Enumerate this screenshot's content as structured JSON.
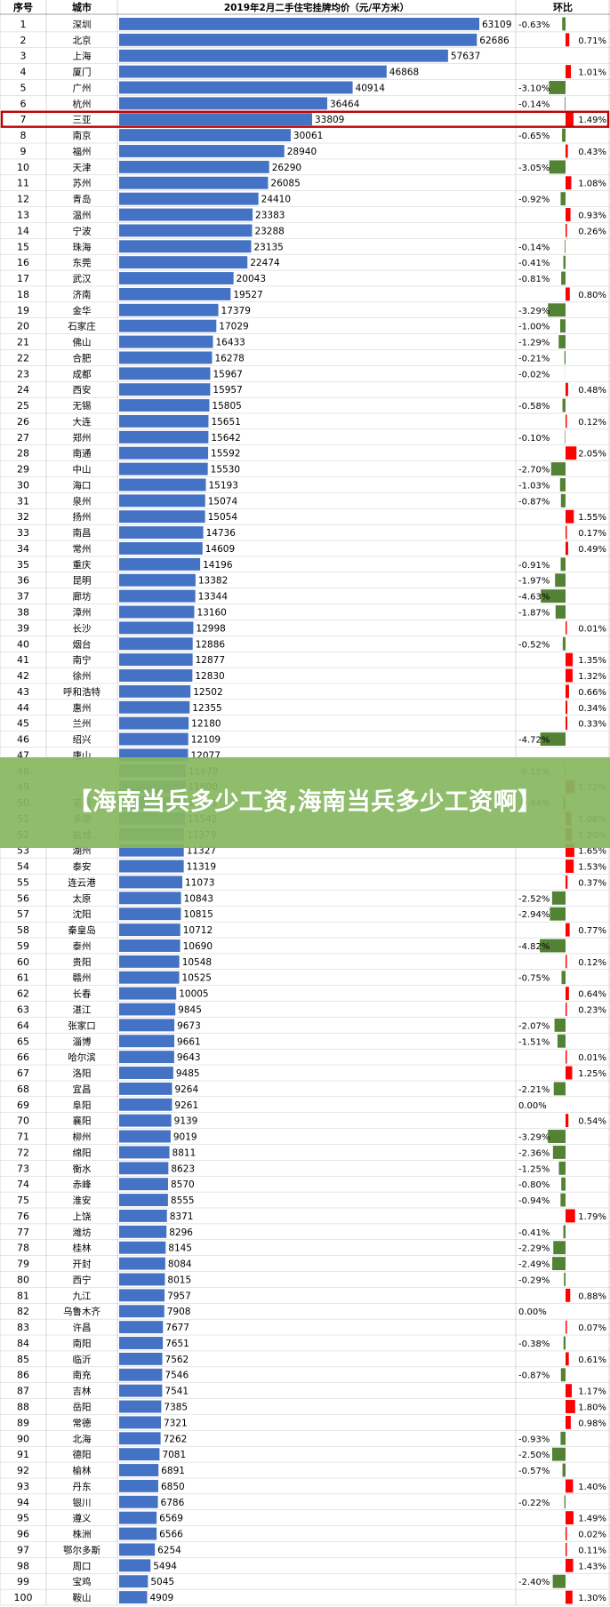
{
  "chart_data": {
    "type": "table",
    "title": "2019年2月二手住宅挂牌均价（元/平方米）",
    "columns": [
      "序号",
      "城市",
      "2019年2月二手住宅挂牌均价（元/平方米）",
      "环比"
    ],
    "rows": [
      {
        "rank": "1",
        "city": "深圳",
        "price": 63109,
        "change": -0.63
      },
      {
        "rank": "2",
        "city": "北京",
        "price": 62686,
        "change": 0.71
      },
      {
        "rank": "3",
        "city": "上海",
        "price": 57637,
        "change": null
      },
      {
        "rank": "4",
        "city": "厦门",
        "price": 46868,
        "change": 1.01
      },
      {
        "rank": "5",
        "city": "广州",
        "price": 40914,
        "change": -3.1
      },
      {
        "rank": "6",
        "city": "杭州",
        "price": 36464,
        "change": -0.14
      },
      {
        "rank": "7",
        "city": "三亚",
        "price": 33809,
        "change": 1.49
      },
      {
        "rank": "8",
        "city": "南京",
        "price": 30061,
        "change": -0.65
      },
      {
        "rank": "9",
        "city": "福州",
        "price": 28940,
        "change": 0.43
      },
      {
        "rank": "10",
        "city": "天津",
        "price": 26290,
        "change": -3.05
      },
      {
        "rank": "11",
        "city": "苏州",
        "price": 26085,
        "change": 1.08
      },
      {
        "rank": "12",
        "city": "青岛",
        "price": 24410,
        "change": -0.92
      },
      {
        "rank": "13",
        "city": "温州",
        "price": 23383,
        "change": 0.93
      },
      {
        "rank": "14",
        "city": "宁波",
        "price": 23288,
        "change": 0.26
      },
      {
        "rank": "15",
        "city": "珠海",
        "price": 23135,
        "change": -0.14
      },
      {
        "rank": "16",
        "city": "东莞",
        "price": 22474,
        "change": -0.41
      },
      {
        "rank": "17",
        "city": "武汉",
        "price": 20043,
        "change": -0.81
      },
      {
        "rank": "18",
        "city": "济南",
        "price": 19527,
        "change": 0.8
      },
      {
        "rank": "19",
        "city": "金华",
        "price": 17379,
        "change": -3.29
      },
      {
        "rank": "20",
        "city": "石家庄",
        "price": 17029,
        "change": -1.0
      },
      {
        "rank": "21",
        "city": "佛山",
        "price": 16433,
        "change": -1.29
      },
      {
        "rank": "22",
        "city": "合肥",
        "price": 16278,
        "change": -0.21
      },
      {
        "rank": "23",
        "city": "成都",
        "price": 15967,
        "change": -0.02
      },
      {
        "rank": "24",
        "city": "西安",
        "price": 15957,
        "change": 0.48
      },
      {
        "rank": "25",
        "city": "无锡",
        "price": 15805,
        "change": -0.58
      },
      {
        "rank": "26",
        "city": "大连",
        "price": 15651,
        "change": 0.12
      },
      {
        "rank": "27",
        "city": "郑州",
        "price": 15642,
        "change": -0.1
      },
      {
        "rank": "28",
        "city": "南通",
        "price": 15592,
        "change": 2.05
      },
      {
        "rank": "29",
        "city": "中山",
        "price": 15530,
        "change": -2.7
      },
      {
        "rank": "30",
        "city": "海口",
        "price": 15193,
        "change": -1.03
      },
      {
        "rank": "31",
        "city": "泉州",
        "price": 15074,
        "change": -0.87
      },
      {
        "rank": "32",
        "city": "扬州",
        "price": 15054,
        "change": 1.55
      },
      {
        "rank": "33",
        "city": "南昌",
        "price": 14736,
        "change": 0.17
      },
      {
        "rank": "34",
        "city": "常州",
        "price": 14609,
        "change": 0.49
      },
      {
        "rank": "35",
        "city": "重庆",
        "price": 14196,
        "change": -0.91
      },
      {
        "rank": "36",
        "city": "昆明",
        "price": 13382,
        "change": -1.97
      },
      {
        "rank": "37",
        "city": "廊坊",
        "price": 13344,
        "change": -4.63
      },
      {
        "rank": "38",
        "city": "漳州",
        "price": 13160,
        "change": -1.87
      },
      {
        "rank": "39",
        "city": "长沙",
        "price": 12998,
        "change": 0.01
      },
      {
        "rank": "40",
        "city": "烟台",
        "price": 12886,
        "change": -0.52
      },
      {
        "rank": "41",
        "city": "南宁",
        "price": 12877,
        "change": 1.35
      },
      {
        "rank": "42",
        "city": "徐州",
        "price": 12830,
        "change": 1.32
      },
      {
        "rank": "43",
        "city": "呼和浩特",
        "price": 12502,
        "change": 0.66
      },
      {
        "rank": "44",
        "city": "惠州",
        "price": 12355,
        "change": 0.34
      },
      {
        "rank": "45",
        "city": "兰州",
        "price": 12180,
        "change": 0.33
      },
      {
        "rank": "46",
        "city": "绍兴",
        "price": 12109,
        "change": -4.72
      },
      {
        "rank": "47",
        "city": "唐山",
        "price": 12077,
        "change": null
      },
      {
        "rank": "48",
        "city": "",
        "price": 11678,
        "change": -0.15
      },
      {
        "rank": "49",
        "city": "",
        "price": 11600,
        "change": 1.72
      },
      {
        "rank": "50",
        "city": "芜湖",
        "price": 11571,
        "change": -0.44
      },
      {
        "rank": "51",
        "city": "承德",
        "price": 11542,
        "change": 1.08
      },
      {
        "rank": "52",
        "city": "盐城",
        "price": 11379,
        "change": 1.2
      },
      {
        "rank": "53",
        "city": "湖州",
        "price": 11327,
        "change": 1.65
      },
      {
        "rank": "54",
        "city": "泰安",
        "price": 11319,
        "change": 1.53
      },
      {
        "rank": "55",
        "city": "连云港",
        "price": 11073,
        "change": 0.37
      },
      {
        "rank": "56",
        "city": "太原",
        "price": 10843,
        "change": -2.52
      },
      {
        "rank": "57",
        "city": "沈阳",
        "price": 10815,
        "change": -2.94
      },
      {
        "rank": "58",
        "city": "秦皇岛",
        "price": 10712,
        "change": 0.77
      },
      {
        "rank": "59",
        "city": "泰州",
        "price": 10690,
        "change": -4.82
      },
      {
        "rank": "60",
        "city": "贵阳",
        "price": 10548,
        "change": 0.12
      },
      {
        "rank": "61",
        "city": "赣州",
        "price": 10525,
        "change": -0.75
      },
      {
        "rank": "62",
        "city": "长春",
        "price": 10005,
        "change": 0.64
      },
      {
        "rank": "63",
        "city": "湛江",
        "price": 9845,
        "change": 0.23
      },
      {
        "rank": "64",
        "city": "张家口",
        "price": 9673,
        "change": -2.07
      },
      {
        "rank": "65",
        "city": "淄博",
        "price": 9661,
        "change": -1.51
      },
      {
        "rank": "66",
        "city": "哈尔滨",
        "price": 9643,
        "change": 0.01
      },
      {
        "rank": "67",
        "city": "洛阳",
        "price": 9485,
        "change": 1.25
      },
      {
        "rank": "68",
        "city": "宜昌",
        "price": 9264,
        "change": -2.21
      },
      {
        "rank": "69",
        "city": "阜阳",
        "price": 9261,
        "change": 0.0
      },
      {
        "rank": "70",
        "city": "襄阳",
        "price": 9139,
        "change": 0.54
      },
      {
        "rank": "71",
        "city": "柳州",
        "price": 9019,
        "change": -3.29
      },
      {
        "rank": "72",
        "city": "绵阳",
        "price": 8811,
        "change": -2.36
      },
      {
        "rank": "73",
        "city": "衡水",
        "price": 8623,
        "change": -1.25
      },
      {
        "rank": "74",
        "city": "赤峰",
        "price": 8570,
        "change": -0.8
      },
      {
        "rank": "75",
        "city": "淮安",
        "price": 8555,
        "change": -0.94
      },
      {
        "rank": "76",
        "city": "上饶",
        "price": 8371,
        "change": 1.79
      },
      {
        "rank": "77",
        "city": "潍坊",
        "price": 8296,
        "change": -0.41
      },
      {
        "rank": "78",
        "city": "桂林",
        "price": 8145,
        "change": -2.29
      },
      {
        "rank": "79",
        "city": "开封",
        "price": 8084,
        "change": -2.49
      },
      {
        "rank": "80",
        "city": "西宁",
        "price": 8015,
        "change": -0.29
      },
      {
        "rank": "81",
        "city": "九江",
        "price": 7957,
        "change": 0.88
      },
      {
        "rank": "82",
        "city": "乌鲁木齐",
        "price": 7908,
        "change": 0.0
      },
      {
        "rank": "83",
        "city": "许昌",
        "price": 7677,
        "change": 0.07
      },
      {
        "rank": "84",
        "city": "南阳",
        "price": 7651,
        "change": -0.38
      },
      {
        "rank": "85",
        "city": "临沂",
        "price": 7562,
        "change": 0.61
      },
      {
        "rank": "86",
        "city": "南充",
        "price": 7546,
        "change": -0.87
      },
      {
        "rank": "87",
        "city": "吉林",
        "price": 7541,
        "change": 1.17
      },
      {
        "rank": "88",
        "city": "岳阳",
        "price": 7385,
        "change": 1.8
      },
      {
        "rank": "89",
        "city": "常德",
        "price": 7321,
        "change": 0.98
      },
      {
        "rank": "90",
        "city": "北海",
        "price": 7262,
        "change": -0.93
      },
      {
        "rank": "91",
        "city": "德阳",
        "price": 7081,
        "change": -2.5
      },
      {
        "rank": "92",
        "city": "榆林",
        "price": 6891,
        "change": -0.57
      },
      {
        "rank": "93",
        "city": "丹东",
        "price": 6850,
        "change": 1.4
      },
      {
        "rank": "94",
        "city": "银川",
        "price": 6786,
        "change": -0.22
      },
      {
        "rank": "95",
        "city": "遵义",
        "price": 6569,
        "change": 1.49
      },
      {
        "rank": "96",
        "city": "株洲",
        "price": 6566,
        "change": 0.02
      },
      {
        "rank": "97",
        "city": "鄂尔多斯",
        "price": 6254,
        "change": 0.11
      },
      {
        "rank": "98",
        "city": "周口",
        "price": 5494,
        "change": 1.43
      },
      {
        "rank": "99",
        "city": "宝鸡",
        "price": 5045,
        "change": -2.4
      },
      {
        "rank": "100",
        "city": "鞍山",
        "price": 4909,
        "change": 1.3
      }
    ],
    "price_range": [
      0,
      63109
    ],
    "highlight_rank": "7",
    "colors": {
      "price_bar": "#4472c4",
      "decrease_bar": "#548235",
      "increase_bar": "#ff0000",
      "highlight_outline": "#c00000",
      "grid": "#bfbfbf"
    }
  },
  "banner": {
    "text": "【海南当兵多少工资,海南当兵多少工资啊】"
  }
}
